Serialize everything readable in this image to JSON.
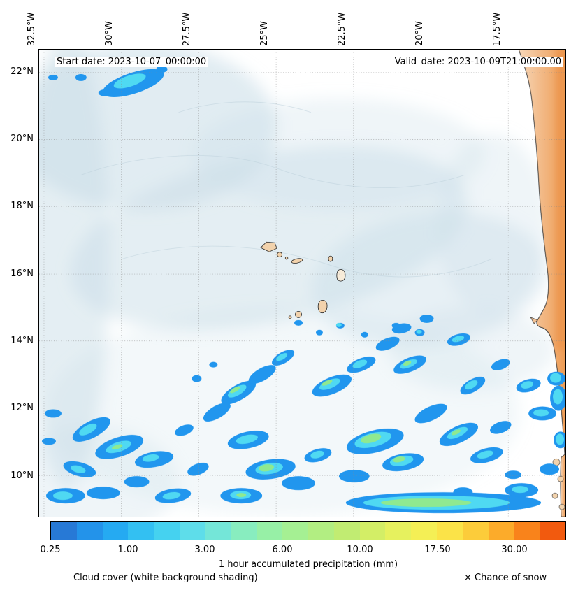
{
  "figure": {
    "titles": {
      "start": "Start date: 2023-10-07_00:00:00",
      "valid": "Valid_date: 2023-10-09T21:00:00.00"
    }
  },
  "axes": {
    "lon_ticks": [
      "32.5°W",
      "30°W",
      "27.5°W",
      "25°W",
      "22.5°W",
      "20°W",
      "17.5°W"
    ],
    "lat_ticks": [
      "22°N",
      "20°N",
      "18°N",
      "16°N",
      "14°N",
      "12°N",
      "10°N"
    ]
  },
  "colorbar": {
    "label": "1 hour accumulated precipitation (mm)",
    "ticks": [
      "0.25",
      "1.00",
      "3.00",
      "6.00",
      "10.00",
      "17.50",
      "30.00"
    ],
    "colors": [
      "#2779d6",
      "#2393ea",
      "#25aaf2",
      "#33c0f2",
      "#45d2f0",
      "#5eddea",
      "#74e6d8",
      "#88edbf",
      "#97f0a6",
      "#a5f093",
      "#b2ee82",
      "#c1ec72",
      "#d3ee66",
      "#e6f15e",
      "#f4ef55",
      "#fbe348",
      "#fccc3a",
      "#fcab2a",
      "#f9831b",
      "#f25a0e"
    ]
  },
  "legend": {
    "cloud_cover": "Cloud cover (white background shading)",
    "chance_of_snow": "× Chance of snow"
  },
  "map_colors": {
    "cloud_shading": "#c9dde8",
    "precip_light_blue": "#2196ee",
    "precip_cyan": "#4fd9f2",
    "precip_green": "#8fe990",
    "land_light": "#f7d8ba",
    "land_dark": "#ee9c55",
    "island_fill": "#f2d2ac"
  },
  "chart_data": {
    "type": "heatmap",
    "title": "1-hour accumulated precipitation forecast map",
    "start_date": "2023-10-07_00:00:00",
    "valid_date": "2023-10-09T21:00:00.00",
    "x_ticks_longitude": [
      "32.5°W",
      "30°W",
      "27.5°W",
      "25°W",
      "22.5°W",
      "20°W",
      "17.5°W"
    ],
    "y_ticks_latitude": [
      "22°N",
      "20°N",
      "18°N",
      "16°N",
      "14°N",
      "12°N",
      "10°N"
    ],
    "colorbar_label": "1 hour accumulated precipitation (mm)",
    "colorbar_tick_levels_mm": [
      0.25,
      1.0,
      3.0,
      6.0,
      10.0,
      17.5,
      30.0
    ],
    "colorbar_range_mm": [
      0.25,
      40
    ],
    "legend_overlays": [
      "Cloud cover (white background shading)",
      "× Chance of snow"
    ],
    "described_features": [
      "Scattered convective precipitation cells (mostly 0.25-10 mm, locally higher) across the ITCZ band south of about 14°N between 32°W and 16°W",
      "Small precipitation cluster near 21.5°N, 30°W",
      "Light blue-grey cloud cover shading over much of the northern and central ocean area",
      "Cape Verde islands outlined near 15-17°N, 23-25°W",
      "West African coast (Mauritania/Senegal/Gambia) along the right edge shaded tan to orange",
      "Long east-west precipitation band near 9.5°N between 23°W and 17°W"
    ]
  }
}
